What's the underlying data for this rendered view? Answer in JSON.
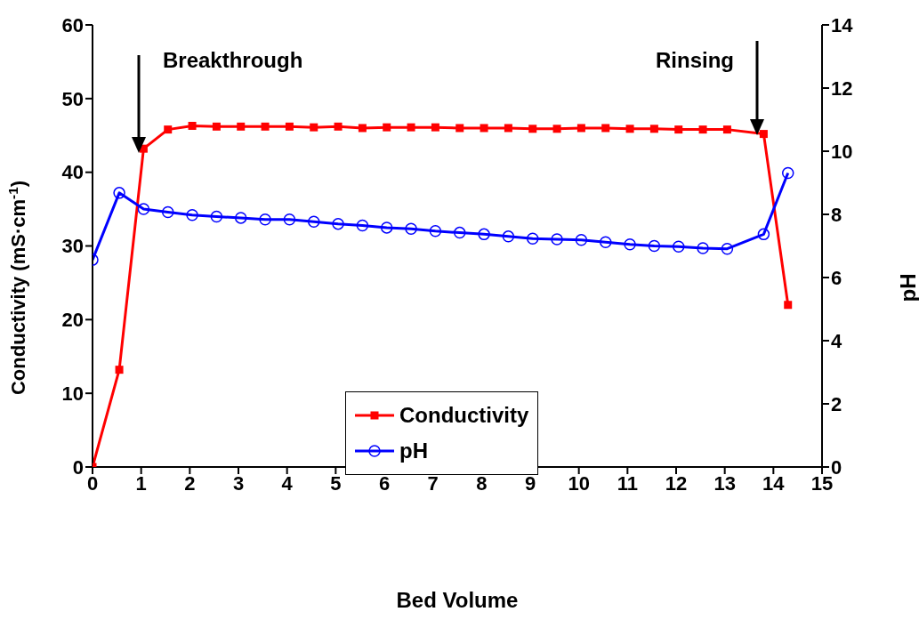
{
  "chart_data": {
    "type": "line",
    "xlabel": "Bed Volume",
    "ylabel": "Conductivity (mS·cm$^{-1}$)",
    "y2label": "pH",
    "x": [
      0,
      0.55,
      1.05,
      1.55,
      2.05,
      2.55,
      3.05,
      3.55,
      4.05,
      4.55,
      5.05,
      5.55,
      6.05,
      6.55,
      7.05,
      7.55,
      8.05,
      8.55,
      9.05,
      9.55,
      10.05,
      10.55,
      11.05,
      11.55,
      12.05,
      12.55,
      13.05,
      13.8,
      14.3
    ],
    "series": [
      {
        "name": "Conductivity",
        "color": "#ff0000",
        "marker": "square",
        "values": [
          0,
          13.2,
          43.2,
          45.8,
          46.3,
          46.2,
          46.2,
          46.2,
          46.2,
          46.1,
          46.2,
          46.0,
          46.1,
          46.1,
          46.1,
          46.0,
          46.0,
          46.0,
          45.9,
          45.9,
          46.0,
          46.0,
          45.9,
          45.9,
          45.8,
          45.8,
          45.8,
          45.2,
          22
        ]
      },
      {
        "name": "pH",
        "color": "#0000ff",
        "marker": "circle",
        "axis": "y2",
        "values": [
          6.56,
          8.68,
          8.17,
          8.07,
          7.98,
          7.93,
          7.89,
          7.84,
          7.84,
          7.77,
          7.7,
          7.65,
          7.58,
          7.54,
          7.47,
          7.42,
          7.37,
          7.3,
          7.23,
          7.21,
          7.19,
          7.12,
          7.05,
          7.0,
          6.98,
          6.93,
          6.91,
          7.37,
          9.31
        ]
      }
    ],
    "xlim": [
      0,
      15
    ],
    "xticks": [
      0,
      1,
      2,
      3,
      4,
      5,
      6,
      7,
      8,
      9,
      10,
      11,
      12,
      13,
      14,
      15
    ],
    "ylim": [
      0,
      60
    ],
    "yticks": [
      0,
      10,
      20,
      30,
      40,
      50,
      60
    ],
    "y2lim": [
      0,
      14
    ],
    "y2ticks": [
      0,
      2,
      4,
      6,
      8,
      10,
      12,
      14
    ],
    "annotations": [
      "Breakthrough",
      "Rinsing"
    ],
    "legend": "center",
    "grid": false
  }
}
